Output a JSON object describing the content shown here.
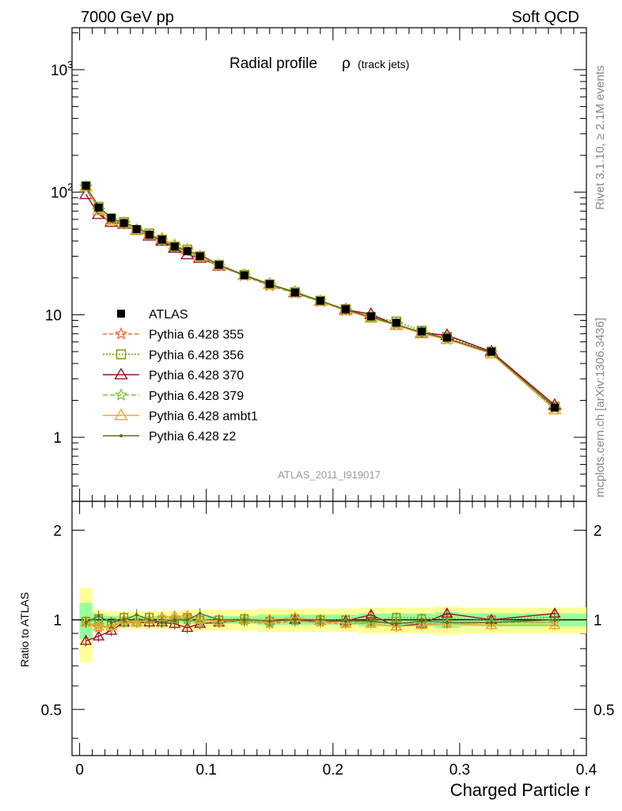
{
  "header": {
    "left": "7000 GeV pp",
    "right": "Soft QCD"
  },
  "side": {
    "rivet": "Rivet 3.1.10, ≥ 2.1M events",
    "mcplots": "mcplots.cern.ch [arXiv:1306.3436]"
  },
  "chart_data": [
    {
      "type": "line",
      "panel": "main",
      "title": "Radial profile",
      "title_symbol": "ρ",
      "title_suffix": "(track jets)",
      "watermark": "ATLAS_2011_I919017",
      "xlabel": "",
      "ylabel": "",
      "xlim": [
        -0.006,
        0.4
      ],
      "ylim": [
        0.3,
        2200
      ],
      "yscale": "log",
      "ytick_labels": [
        {
          "v": 1,
          "label": "1"
        },
        {
          "v": 10,
          "label": "10"
        },
        {
          "v": 100,
          "label": "10",
          "exp": "2"
        },
        {
          "v": 1000,
          "label": "10",
          "exp": "3"
        }
      ],
      "legend_position": "left-middle",
      "x": [
        0.005,
        0.015,
        0.025,
        0.035,
        0.045,
        0.055,
        0.065,
        0.075,
        0.085,
        0.095,
        0.11,
        0.13,
        0.15,
        0.17,
        0.19,
        0.21,
        0.23,
        0.25,
        0.27,
        0.29,
        0.325,
        0.375
      ],
      "series": [
        {
          "name": "ATLAS",
          "color": "#000000",
          "style": "data",
          "values": [
            113,
            75,
            62,
            56,
            50,
            45,
            41,
            36,
            33,
            30,
            25.5,
            21,
            17.8,
            15.2,
            13,
            11.1,
            9.7,
            8.6,
            7.3,
            6.5,
            5,
            1.75
          ]
        },
        {
          "name": "Pythia 6.428 355",
          "color": "#f07030",
          "style": "star-dashed",
          "values": [
            110,
            71,
            59,
            56,
            49,
            45,
            40,
            36.5,
            34,
            29.5,
            25,
            20.8,
            17.2,
            15,
            12.8,
            10.8,
            9.5,
            8.4,
            7.1,
            6.3,
            4.9,
            1.72
          ]
        },
        {
          "name": "Pythia 6.428 356",
          "color": "#7a9a10",
          "style": "square-dotted",
          "values": [
            112,
            76,
            61,
            57,
            49,
            46,
            41,
            36,
            34,
            30,
            25.5,
            21.2,
            17.7,
            15.3,
            13,
            11.1,
            9.6,
            8.8,
            7.4,
            6.6,
            5,
            1.78
          ]
        },
        {
          "name": "Pythia 6.428 370",
          "color": "#a01030",
          "style": "triangle-solid",
          "values": [
            96,
            66,
            57,
            55,
            49,
            44,
            40,
            35,
            31,
            29,
            25,
            21,
            17.8,
            15.2,
            12.9,
            11,
            10.1,
            8.2,
            7.1,
            6.8,
            5,
            1.83
          ]
        },
        {
          "name": "Pythia 6.428 379",
          "color": "#80c040",
          "style": "star-dashed",
          "values": [
            111,
            72,
            59,
            55,
            49,
            45,
            40,
            36,
            33,
            29.5,
            25,
            20.8,
            17.4,
            15,
            12.8,
            10.9,
            9.5,
            8.3,
            7.1,
            6.3,
            4.9,
            1.72
          ]
        },
        {
          "name": "Pythia 6.428 ambt1",
          "color": "#f0a830",
          "style": "triangle-solid",
          "values": [
            111,
            71,
            59,
            56,
            49,
            45,
            42,
            37,
            34,
            30,
            25.3,
            21,
            17.8,
            15.4,
            12.9,
            10.8,
            9.4,
            8.2,
            7,
            6.3,
            4.8,
            1.68
          ]
        },
        {
          "name": "Pythia 6.428 z2",
          "color": "#5a6e20",
          "style": "dot-solid",
          "values": [
            111,
            77,
            61,
            56,
            52,
            45,
            40,
            36,
            33,
            31,
            25.5,
            21,
            17.7,
            15.3,
            13,
            11,
            9.6,
            8.3,
            7.2,
            6.4,
            4.9,
            1.76
          ]
        }
      ]
    },
    {
      "type": "line",
      "panel": "ratio",
      "ylabel": "Ratio to ATLAS",
      "xlabel": "Charged Particle r",
      "xlim": [
        -0.006,
        0.4
      ],
      "ylim": [
        0.35,
        2.5
      ],
      "yscale": "log",
      "xtick_labels": [
        {
          "v": 0,
          "label": "0"
        },
        {
          "v": 0.1,
          "label": "0.1"
        },
        {
          "v": 0.2,
          "label": "0.2"
        },
        {
          "v": 0.3,
          "label": "0.3"
        },
        {
          "v": 0.4,
          "label": "0.4"
        }
      ],
      "ytick_labels": [
        {
          "v": 0.5,
          "label": "0.5"
        },
        {
          "v": 1,
          "label": "1"
        },
        {
          "v": 2,
          "label": "2"
        }
      ],
      "x": [
        0.005,
        0.015,
        0.025,
        0.035,
        0.045,
        0.055,
        0.065,
        0.075,
        0.085,
        0.095,
        0.11,
        0.13,
        0.15,
        0.17,
        0.19,
        0.21,
        0.23,
        0.25,
        0.27,
        0.29,
        0.325,
        0.375
      ],
      "band_edges": [
        0,
        0.01,
        0.02,
        0.03,
        0.04,
        0.05,
        0.06,
        0.07,
        0.08,
        0.09,
        0.1,
        0.12,
        0.14,
        0.16,
        0.18,
        0.2,
        0.22,
        0.24,
        0.26,
        0.28,
        0.3,
        0.35,
        0.4
      ],
      "band_stat": [
        0.14,
        0.05,
        0.03,
        0.03,
        0.03,
        0.03,
        0.03,
        0.03,
        0.03,
        0.03,
        0.03,
        0.03,
        0.04,
        0.04,
        0.04,
        0.04,
        0.05,
        0.05,
        0.05,
        0.06,
        0.05,
        0.05
      ],
      "band_total": [
        0.28,
        0.08,
        0.07,
        0.07,
        0.07,
        0.07,
        0.07,
        0.07,
        0.08,
        0.08,
        0.08,
        0.08,
        0.09,
        0.09,
        0.09,
        0.09,
        0.1,
        0.1,
        0.1,
        0.11,
        0.1,
        0.1
      ],
      "series": [
        {
          "name": "Pythia 6.428 355",
          "color": "#f07030",
          "style": "star-dashed",
          "values": [
            0.98,
            0.94,
            0.95,
            1.0,
            0.98,
            1.0,
            0.98,
            1.01,
            1.02,
            0.98,
            0.98,
            0.99,
            0.97,
            0.99,
            0.98,
            0.97,
            0.98,
            0.98,
            0.97,
            0.97,
            0.98,
            0.98
          ]
        },
        {
          "name": "Pythia 6.428 356",
          "color": "#7a9a10",
          "style": "square-dotted",
          "values": [
            0.99,
            1.01,
            0.98,
            1.02,
            0.98,
            1.02,
            1.0,
            1.0,
            1.02,
            1.0,
            1.0,
            1.01,
            0.99,
            1.01,
            1.0,
            1.0,
            0.99,
            1.02,
            1.01,
            1.01,
            1.0,
            1.02
          ]
        },
        {
          "name": "Pythia 6.428 370",
          "color": "#a01030",
          "style": "triangle-solid",
          "values": [
            0.85,
            0.88,
            0.92,
            0.98,
            0.98,
            0.98,
            0.98,
            0.97,
            0.94,
            0.97,
            0.98,
            1.0,
            1.0,
            1.0,
            0.99,
            0.99,
            1.04,
            0.95,
            0.97,
            1.05,
            1.0,
            1.05
          ]
        },
        {
          "name": "Pythia 6.428 379",
          "color": "#80c040",
          "style": "star-dashed",
          "values": [
            0.98,
            0.96,
            0.95,
            0.98,
            0.98,
            1.0,
            0.98,
            1.0,
            1.0,
            0.98,
            0.98,
            0.99,
            0.98,
            0.99,
            0.98,
            0.98,
            0.98,
            0.97,
            0.97,
            0.97,
            0.98,
            0.98
          ]
        },
        {
          "name": "Pythia 6.428 ambt1",
          "color": "#f0a830",
          "style": "triangle-solid",
          "values": [
            0.98,
            0.95,
            0.95,
            1.0,
            0.98,
            1.0,
            1.02,
            1.03,
            1.03,
            1.0,
            0.99,
            1.0,
            1.0,
            1.02,
            0.99,
            0.97,
            0.97,
            0.95,
            0.96,
            0.97,
            0.96,
            0.96
          ]
        },
        {
          "name": "Pythia 6.428 z2",
          "color": "#5a6e20",
          "style": "dot-solid",
          "values": [
            0.98,
            1.03,
            0.98,
            1.0,
            1.04,
            1.0,
            0.98,
            1.0,
            1.0,
            1.05,
            1.0,
            1.0,
            0.99,
            1.0,
            1.0,
            0.99,
            0.99,
            0.97,
            0.99,
            0.98,
            0.98,
            1.0
          ]
        }
      ]
    }
  ]
}
